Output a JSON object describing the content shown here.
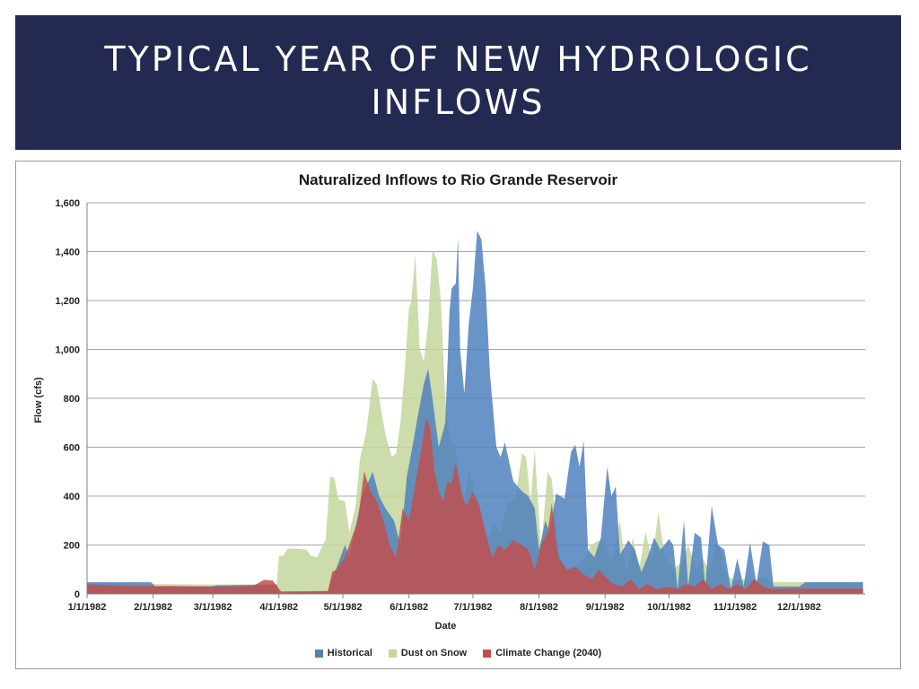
{
  "slide": {
    "title": "TYPICAL YEAR OF NEW HYDROLOGIC INFLOWS",
    "banner_color": "#232951"
  },
  "chart_data": {
    "type": "area",
    "title": "Naturalized Inflows to Rio Grande Reservoir",
    "xlabel": "Date",
    "ylabel": "Flow (cfs)",
    "x_domain": [
      "1/1/1982",
      "12/31/1982"
    ],
    "ylim": [
      0,
      1600
    ],
    "y_ticks": [
      0,
      200,
      400,
      600,
      800,
      1000,
      1200,
      1400,
      1600
    ],
    "y_tick_labels": [
      "0",
      "200",
      "400",
      "600",
      "800",
      "1,000",
      "1,200",
      "1,400",
      "1,600"
    ],
    "x_tick_labels": [
      "1/1/1982",
      "2/1/1982",
      "3/1/1982",
      "4/1/1982",
      "5/1/1982",
      "6/1/1982",
      "7/1/1982",
      "8/1/1982",
      "9/1/1982",
      "10/1/1982",
      "11/1/1982",
      "12/1/1982"
    ],
    "grid": "horizontal",
    "legend_position": "bottom",
    "series": [
      {
        "name": "Dust on Snow",
        "color": "#c3d69b",
        "points": [
          [
            "1/1/1982",
            45
          ],
          [
            "2/1/1982",
            40
          ],
          [
            "3/1/1982",
            38
          ],
          [
            "3/31/1982",
            40
          ],
          [
            "4/1/1982",
            155
          ],
          [
            "4/3/1982",
            155
          ],
          [
            "4/5/1982",
            185
          ],
          [
            "4/10/1982",
            185
          ],
          [
            "4/14/1982",
            180
          ],
          [
            "4/16/1982",
            155
          ],
          [
            "4/19/1982",
            150
          ],
          [
            "4/23/1982",
            225
          ],
          [
            "4/25/1982",
            480
          ],
          [
            "4/27/1982",
            475
          ],
          [
            "4/29/1982",
            385
          ],
          [
            "5/2/1982",
            380
          ],
          [
            "5/4/1982",
            250
          ],
          [
            "5/7/1982",
            360
          ],
          [
            "5/9/1982",
            550
          ],
          [
            "5/12/1982",
            665
          ],
          [
            "5/15/1982",
            880
          ],
          [
            "5/17/1982",
            855
          ],
          [
            "5/19/1982",
            750
          ],
          [
            "5/21/1982",
            650
          ],
          [
            "5/24/1982",
            560
          ],
          [
            "5/26/1982",
            575
          ],
          [
            "5/28/1982",
            700
          ],
          [
            "5/30/1982",
            910
          ],
          [
            "6/1/1982",
            1170
          ],
          [
            "6/2/1982",
            1190
          ],
          [
            "6/4/1982",
            1390
          ],
          [
            "6/6/1982",
            1000
          ],
          [
            "6/8/1982",
            950
          ],
          [
            "6/10/1982",
            1110
          ],
          [
            "6/12/1982",
            1410
          ],
          [
            "6/14/1982",
            1370
          ],
          [
            "6/16/1982",
            1200
          ],
          [
            "6/18/1982",
            800
          ],
          [
            "6/20/1982",
            630
          ],
          [
            "6/23/1982",
            600
          ],
          [
            "6/26/1982",
            300
          ],
          [
            "6/29/1982",
            520
          ],
          [
            "7/1/1982",
            450
          ],
          [
            "7/4/1982",
            265
          ],
          [
            "7/8/1982",
            230
          ],
          [
            "7/11/1982",
            285
          ],
          [
            "7/14/1982",
            250
          ],
          [
            "7/17/1982",
            365
          ],
          [
            "7/21/1982",
            390
          ],
          [
            "7/24/1982",
            575
          ],
          [
            "7/26/1982",
            560
          ],
          [
            "7/28/1982",
            370
          ],
          [
            "7/30/1982",
            590
          ],
          [
            "8/2/1982",
            180
          ],
          [
            "8/5/1982",
            500
          ],
          [
            "8/7/1982",
            470
          ],
          [
            "8/10/1982",
            180
          ],
          [
            "8/14/1982",
            85
          ],
          [
            "8/18/1982",
            115
          ],
          [
            "8/22/1982",
            140
          ],
          [
            "8/25/1982",
            195
          ],
          [
            "8/28/1982",
            215
          ],
          [
            "9/1/1982",
            220
          ],
          [
            "9/4/1982",
            120
          ],
          [
            "9/8/1982",
            300
          ],
          [
            "9/11/1982",
            80
          ],
          [
            "9/14/1982",
            230
          ],
          [
            "9/17/1982",
            100
          ],
          [
            "9/20/1982",
            255
          ],
          [
            "9/23/1982",
            130
          ],
          [
            "9/26/1982",
            335
          ],
          [
            "9/29/1982",
            150
          ],
          [
            "10/3/1982",
            100
          ],
          [
            "10/7/1982",
            130
          ],
          [
            "10/10/1982",
            200
          ],
          [
            "10/14/1982",
            100
          ],
          [
            "10/17/1982",
            145
          ],
          [
            "10/20/1982",
            90
          ],
          [
            "10/23/1982",
            200
          ],
          [
            "10/25/1982",
            195
          ],
          [
            "10/28/1982",
            75
          ],
          [
            "11/1/1982",
            55
          ],
          [
            "11/5/1982",
            60
          ],
          [
            "11/10/1982",
            55
          ],
          [
            "11/15/1982",
            70
          ],
          [
            "11/18/1982",
            48
          ],
          [
            "12/1/1982",
            48
          ],
          [
            "12/31/1982",
            48
          ]
        ]
      },
      {
        "name": "Historical",
        "color": "#4f81bd",
        "points": [
          [
            "1/1/1982",
            48
          ],
          [
            "1/31/1982",
            48
          ],
          [
            "2/2/1982",
            30
          ],
          [
            "2/28/1982",
            30
          ],
          [
            "3/3/1982",
            35
          ],
          [
            "3/31/1982",
            38
          ],
          [
            "4/1/1982",
            5
          ],
          [
            "4/24/1982",
            10
          ],
          [
            "4/26/1982",
            60
          ],
          [
            "5/2/1982",
            200
          ],
          [
            "5/4/1982",
            150
          ],
          [
            "5/10/1982",
            400
          ],
          [
            "5/15/1982",
            500
          ],
          [
            "5/18/1982",
            400
          ],
          [
            "5/21/1982",
            350
          ],
          [
            "5/25/1982",
            300
          ],
          [
            "5/28/1982",
            200
          ],
          [
            "5/31/1982",
            480
          ],
          [
            "6/3/1982",
            620
          ],
          [
            "6/5/1982",
            720
          ],
          [
            "6/8/1982",
            860
          ],
          [
            "6/10/1982",
            920
          ],
          [
            "6/12/1982",
            800
          ],
          [
            "6/15/1982",
            600
          ],
          [
            "6/18/1982",
            700
          ],
          [
            "6/20/1982",
            1150
          ],
          [
            "6/21/1982",
            1250
          ],
          [
            "6/23/1982",
            1270
          ],
          [
            "6/24/1982",
            1460
          ],
          [
            "6/25/1982",
            1000
          ],
          [
            "6/27/1982",
            820
          ],
          [
            "6/29/1982",
            1100
          ],
          [
            "7/1/1982",
            1250
          ],
          [
            "7/3/1982",
            1485
          ],
          [
            "7/5/1982",
            1450
          ],
          [
            "7/7/1982",
            1250
          ],
          [
            "7/9/1982",
            900
          ],
          [
            "7/12/1982",
            600
          ],
          [
            "7/14/1982",
            560
          ],
          [
            "7/16/1982",
            620
          ],
          [
            "7/18/1982",
            540
          ],
          [
            "7/20/1982",
            460
          ],
          [
            "7/24/1982",
            420
          ],
          [
            "7/27/1982",
            400
          ],
          [
            "7/30/1982",
            350
          ],
          [
            "8/1/1982",
            180
          ],
          [
            "8/4/1982",
            300
          ],
          [
            "8/6/1982",
            250
          ],
          [
            "8/9/1982",
            410
          ],
          [
            "8/13/1982",
            390
          ],
          [
            "8/16/1982",
            580
          ],
          [
            "8/18/1982",
            610
          ],
          [
            "8/20/1982",
            520
          ],
          [
            "8/22/1982",
            625
          ],
          [
            "8/24/1982",
            180
          ],
          [
            "8/27/1982",
            150
          ],
          [
            "8/30/1982",
            230
          ],
          [
            "9/2/1982",
            520
          ],
          [
            "9/4/1982",
            400
          ],
          [
            "9/6/1982",
            440
          ],
          [
            "9/8/1982",
            160
          ],
          [
            "9/12/1982",
            220
          ],
          [
            "9/15/1982",
            180
          ],
          [
            "9/18/1982",
            90
          ],
          [
            "9/21/1982",
            150
          ],
          [
            "9/24/1982",
            230
          ],
          [
            "9/27/1982",
            180
          ],
          [
            "10/1/1982",
            225
          ],
          [
            "10/3/1982",
            200
          ],
          [
            "10/5/1982",
            20
          ],
          [
            "10/8/1982",
            300
          ],
          [
            "10/10/1982",
            30
          ],
          [
            "10/13/1982",
            250
          ],
          [
            "10/16/1982",
            230
          ],
          [
            "10/18/1982",
            30
          ],
          [
            "10/21/1982",
            360
          ],
          [
            "10/24/1982",
            200
          ],
          [
            "10/27/1982",
            180
          ],
          [
            "10/30/1982",
            20
          ],
          [
            "11/2/1982",
            145
          ],
          [
            "11/5/1982",
            30
          ],
          [
            "11/8/1982",
            210
          ],
          [
            "11/11/1982",
            40
          ],
          [
            "11/14/1982",
            215
          ],
          [
            "11/17/1982",
            200
          ],
          [
            "11/19/1982",
            30
          ],
          [
            "12/1/1982",
            30
          ],
          [
            "12/4/1982",
            48
          ],
          [
            "12/31/1982",
            48
          ]
        ]
      },
      {
        "name": "Climate Change (2040)",
        "color": "#c0504d",
        "points": [
          [
            "1/1/1982",
            40
          ],
          [
            "1/20/1982",
            32
          ],
          [
            "2/10/1982",
            32
          ],
          [
            "3/1/1982",
            30
          ],
          [
            "3/20/1982",
            32
          ],
          [
            "3/25/1982",
            58
          ],
          [
            "3/29/1982",
            55
          ],
          [
            "4/2/1982",
            10
          ],
          [
            "4/24/1982",
            12
          ],
          [
            "4/26/1982",
            90
          ],
          [
            "4/28/1982",
            100
          ],
          [
            "5/2/1982",
            150
          ],
          [
            "5/4/1982",
            200
          ],
          [
            "5/8/1982",
            300
          ],
          [
            "5/11/1982",
            500
          ],
          [
            "5/14/1982",
            420
          ],
          [
            "5/17/1982",
            380
          ],
          [
            "5/20/1982",
            300
          ],
          [
            "5/23/1982",
            200
          ],
          [
            "5/26/1982",
            150
          ],
          [
            "5/29/1982",
            350
          ],
          [
            "6/1/1982",
            300
          ],
          [
            "6/4/1982",
            450
          ],
          [
            "6/7/1982",
            600
          ],
          [
            "6/9/1982",
            720
          ],
          [
            "6/11/1982",
            680
          ],
          [
            "6/13/1982",
            500
          ],
          [
            "6/15/1982",
            420
          ],
          [
            "6/17/1982",
            380
          ],
          [
            "6/19/1982",
            460
          ],
          [
            "6/21/1982",
            450
          ],
          [
            "6/23/1982",
            540
          ],
          [
            "6/26/1982",
            400
          ],
          [
            "6/28/1982",
            360
          ],
          [
            "7/1/1982",
            420
          ],
          [
            "7/4/1982",
            360
          ],
          [
            "7/7/1982",
            250
          ],
          [
            "7/10/1982",
            150
          ],
          [
            "7/13/1982",
            200
          ],
          [
            "7/16/1982",
            180
          ],
          [
            "7/20/1982",
            220
          ],
          [
            "7/24/1982",
            200
          ],
          [
            "7/27/1982",
            180
          ],
          [
            "7/30/1982",
            100
          ],
          [
            "8/2/1982",
            200
          ],
          [
            "8/5/1982",
            250
          ],
          [
            "8/7/1982",
            370
          ],
          [
            "8/10/1982",
            150
          ],
          [
            "8/14/1982",
            100
          ],
          [
            "8/18/1982",
            110
          ],
          [
            "8/22/1982",
            80
          ],
          [
            "8/26/1982",
            60
          ],
          [
            "8/29/1982",
            100
          ],
          [
            "9/1/1982",
            70
          ],
          [
            "9/5/1982",
            40
          ],
          [
            "9/9/1982",
            30
          ],
          [
            "9/13/1982",
            60
          ],
          [
            "9/17/1982",
            20
          ],
          [
            "9/21/1982",
            40
          ],
          [
            "9/25/1982",
            20
          ],
          [
            "10/1/1982",
            30
          ],
          [
            "10/5/1982",
            20
          ],
          [
            "10/9/1982",
            40
          ],
          [
            "10/13/1982",
            30
          ],
          [
            "10/17/1982",
            60
          ],
          [
            "10/21/1982",
            20
          ],
          [
            "10/25/1982",
            40
          ],
          [
            "10/29/1982",
            20
          ],
          [
            "11/2/1982",
            40
          ],
          [
            "11/6/1982",
            20
          ],
          [
            "11/10/1982",
            60
          ],
          [
            "11/14/1982",
            30
          ],
          [
            "11/18/1982",
            20
          ],
          [
            "12/1/1982",
            22
          ],
          [
            "12/31/1982",
            22
          ]
        ]
      }
    ],
    "legend_order": [
      "Historical",
      "Dust on Snow",
      "Climate Change (2040)"
    ]
  }
}
